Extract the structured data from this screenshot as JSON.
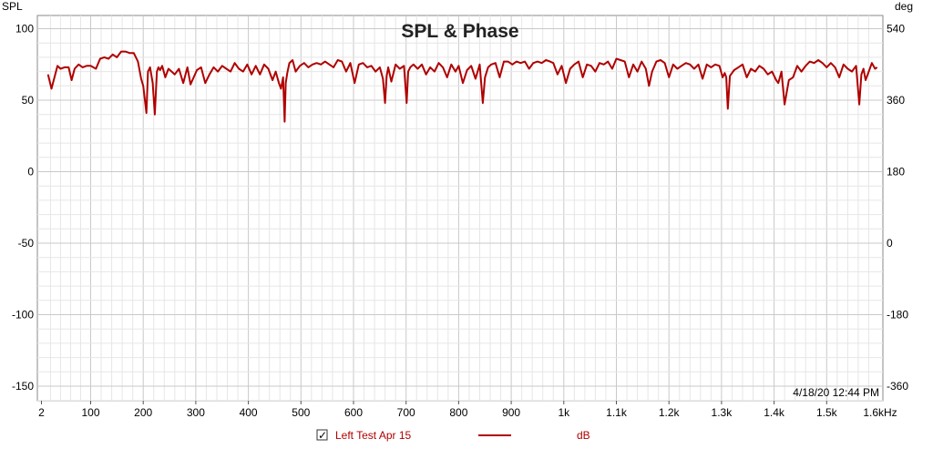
{
  "chart_data": {
    "type": "line",
    "title": "SPL & Phase",
    "ylabel_left": "SPL",
    "ylabel_right": "deg",
    "x_unit_label": "1.6kHz",
    "x_range_hz": [
      2,
      1600
    ],
    "y_left_range": [
      -160,
      100
    ],
    "y_right_range": [
      -360,
      540
    ],
    "x_ticks": [
      {
        "v": 2,
        "label": "2"
      },
      {
        "v": 100,
        "label": "100"
      },
      {
        "v": 200,
        "label": "200"
      },
      {
        "v": 300,
        "label": "300"
      },
      {
        "v": 400,
        "label": "400"
      },
      {
        "v": 500,
        "label": "500"
      },
      {
        "v": 600,
        "label": "600"
      },
      {
        "v": 700,
        "label": "700"
      },
      {
        "v": 800,
        "label": "800"
      },
      {
        "v": 900,
        "label": "900"
      },
      {
        "v": 1000,
        "label": "1k"
      },
      {
        "v": 1100,
        "label": "1.1k"
      },
      {
        "v": 1200,
        "label": "1.2k"
      },
      {
        "v": 1300,
        "label": "1.3k"
      },
      {
        "v": 1400,
        "label": "1.4k"
      },
      {
        "v": 1500,
        "label": "1.5k"
      }
    ],
    "y_left_ticks": [
      {
        "v": 100,
        "label": "100"
      },
      {
        "v": 50,
        "label": "50"
      },
      {
        "v": 0,
        "label": "0"
      },
      {
        "v": -50,
        "label": "-50"
      },
      {
        "v": -100,
        "label": "-100"
      },
      {
        "v": -150,
        "label": "-150"
      }
    ],
    "y_right_ticks": [
      {
        "v": 540,
        "label": "540"
      },
      {
        "v": 360,
        "label": "360"
      },
      {
        "v": 180,
        "label": "180"
      },
      {
        "v": 0,
        "label": "0"
      },
      {
        "v": -180,
        "label": "-180"
      },
      {
        "v": -360,
        "label": "-360"
      }
    ],
    "grid": true,
    "series": [
      {
        "name": "Left Test Apr 15",
        "unit": "dB",
        "color": "#b00000",
        "visible": true,
        "x": [
          15,
          22,
          28,
          34,
          40,
          48,
          56,
          62,
          68,
          76,
          84,
          92,
          100,
          110,
          118,
          126,
          134,
          142,
          150,
          158,
          166,
          174,
          182,
          190,
          196,
          200,
          206,
          209,
          213,
          218,
          222,
          226,
          229,
          232,
          236,
          242,
          248,
          254,
          260,
          268,
          276,
          284,
          290,
          296,
          302,
          310,
          318,
          326,
          334,
          342,
          350,
          358,
          366,
          374,
          382,
          390,
          398,
          406,
          414,
          422,
          430,
          438,
          446,
          452,
          458,
          462,
          466,
          469,
          471,
          474,
          478,
          484,
          490,
          498,
          506,
          514,
          522,
          530,
          538,
          546,
          554,
          562,
          570,
          578,
          586,
          594,
          602,
          610,
          618,
          626,
          634,
          642,
          650,
          656,
          660,
          663,
          666,
          672,
          680,
          688,
          696,
          701,
          704,
          708,
          714,
          722,
          730,
          738,
          746,
          754,
          762,
          770,
          778,
          786,
          794,
          800,
          808,
          816,
          824,
          832,
          840,
          846,
          850,
          856,
          862,
          870,
          878,
          886,
          894,
          902,
          910,
          918,
          926,
          934,
          942,
          950,
          958,
          966,
          974,
          980,
          988,
          996,
          1004,
          1012,
          1020,
          1028,
          1036,
          1044,
          1052,
          1060,
          1068,
          1076,
          1084,
          1092,
          1100,
          1108,
          1116,
          1124,
          1132,
          1140,
          1148,
          1156,
          1162,
          1168,
          1176,
          1184,
          1192,
          1200,
          1208,
          1216,
          1224,
          1232,
          1240,
          1248,
          1256,
          1264,
          1272,
          1280,
          1288,
          1296,
          1302,
          1306,
          1309,
          1312,
          1316,
          1324,
          1332,
          1340,
          1348,
          1356,
          1364,
          1372,
          1380,
          1388,
          1396,
          1404,
          1408,
          1414,
          1420,
          1428,
          1436,
          1444,
          1452,
          1460,
          1468,
          1476,
          1484,
          1492,
          1500,
          1508,
          1516,
          1524,
          1532,
          1540,
          1548,
          1556,
          1562,
          1566,
          1570,
          1574,
          1580,
          1586,
          1592,
          1596
        ],
        "values": [
          68,
          58,
          66,
          74,
          72,
          73,
          73,
          64,
          72,
          75,
          73,
          74,
          74,
          72,
          79,
          80,
          79,
          82,
          80,
          84,
          84,
          83,
          83,
          77,
          65,
          60,
          41,
          70,
          73,
          62,
          40,
          70,
          73,
          71,
          74,
          66,
          72,
          70,
          68,
          72,
          62,
          73,
          61,
          66,
          71,
          73,
          62,
          68,
          73,
          70,
          74,
          72,
          70,
          76,
          72,
          70,
          75,
          68,
          74,
          68,
          75,
          72,
          64,
          70,
          62,
          58,
          66,
          35,
          62,
          69,
          76,
          78,
          70,
          74,
          76,
          73,
          75,
          76,
          75,
          77,
          75,
          73,
          78,
          77,
          70,
          76,
          62,
          75,
          76,
          73,
          74,
          70,
          73,
          65,
          48,
          67,
          73,
          63,
          75,
          72,
          74,
          48,
          70,
          73,
          75,
          72,
          75,
          68,
          73,
          70,
          76,
          73,
          66,
          75,
          70,
          74,
          62,
          71,
          74,
          65,
          75,
          48,
          66,
          73,
          75,
          76,
          66,
          77,
          77,
          75,
          77,
          76,
          77,
          72,
          76,
          77,
          76,
          78,
          77,
          76,
          68,
          74,
          62,
          72,
          75,
          77,
          66,
          75,
          74,
          70,
          76,
          75,
          77,
          72,
          79,
          78,
          77,
          66,
          75,
          70,
          77,
          72,
          60,
          70,
          77,
          78,
          76,
          66,
          75,
          72,
          74,
          76,
          75,
          72,
          75,
          65,
          75,
          73,
          75,
          74,
          66,
          69,
          66,
          44,
          67,
          71,
          73,
          75,
          66,
          72,
          70,
          74,
          72,
          68,
          70,
          64,
          62,
          70,
          47,
          64,
          66,
          74,
          70,
          74,
          77,
          76,
          78,
          76,
          73,
          76,
          73,
          66,
          75,
          72,
          70,
          74,
          47,
          68,
          72,
          64,
          70,
          76,
          72,
          73
        ]
      }
    ]
  },
  "timestamp": "4/18/20 12:44 PM",
  "legend": {
    "checked": true,
    "checkmark": "✓",
    "name": "Left Test Apr 15",
    "unit": "dB"
  }
}
